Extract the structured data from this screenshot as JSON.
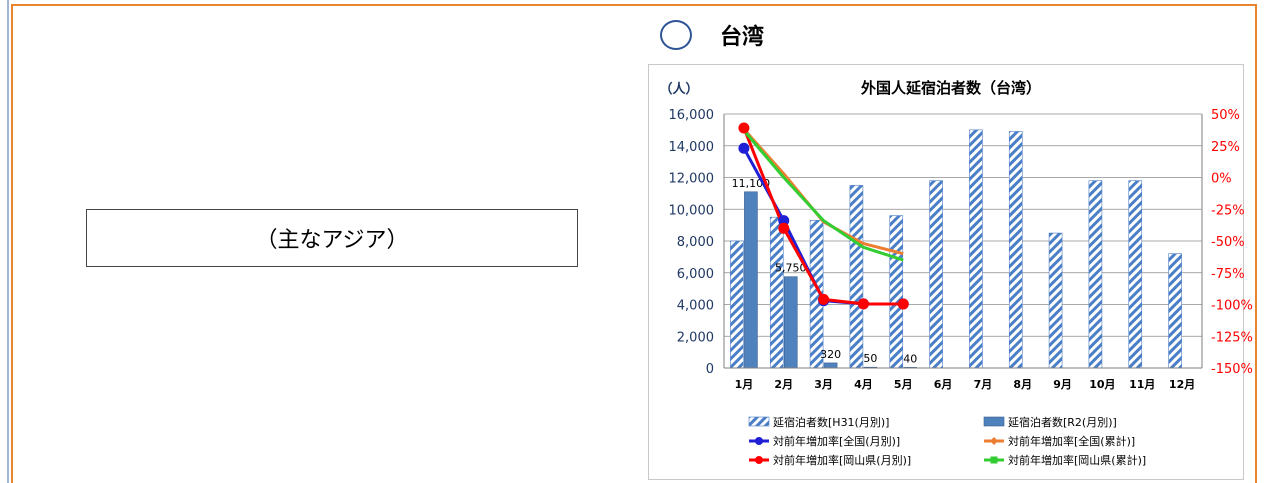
{
  "region_label": "（主なアジア）",
  "country": {
    "name": "台湾"
  },
  "chart_data": {
    "type": "bar",
    "title": "外国人延宿泊者数（台湾）",
    "ylabel": "（人）",
    "categories": [
      "1月",
      "2月",
      "3月",
      "4月",
      "5月",
      "6月",
      "7月",
      "8月",
      "9月",
      "10月",
      "11月",
      "12月"
    ],
    "ylim": [
      0,
      16000
    ],
    "yticks": [
      "0",
      "2,000",
      "4,000",
      "6,000",
      "8,000",
      "10,000",
      "12,000",
      "14,000",
      "16,000"
    ],
    "y2lim": [
      -150,
      50
    ],
    "y2ticks": [
      "-150%",
      "-125%",
      "-100%",
      "-75%",
      "-50%",
      "-25%",
      "0%",
      "25%",
      "50%"
    ],
    "bar_series": [
      {
        "name": "延宿泊者数[H31(月別)]",
        "values": [
          8000,
          9500,
          9300,
          11500,
          9600,
          11800,
          15000,
          14900,
          8500,
          11800,
          11800,
          7200
        ],
        "color": "#4472c4",
        "pattern": "hatched"
      },
      {
        "name": "延宿泊者数[R2(月別)]",
        "values": [
          11100,
          5750,
          320,
          50,
          40,
          null,
          null,
          null,
          null,
          null,
          null,
          null
        ],
        "labels": [
          "11,100",
          "5,750",
          "320",
          "50",
          "40"
        ],
        "color": "#4f81bd",
        "pattern": "solid"
      }
    ],
    "line_series": [
      {
        "name": "対前年増加率[全国(月別)]",
        "values": [
          23,
          -34,
          -97,
          -99.5,
          -99.6
        ],
        "color": "#1f1fd6"
      },
      {
        "name": "対前年増加率[全国(累計)]",
        "values": [
          38,
          3,
          -35,
          -52,
          -60
        ],
        "color": "#ed7d31"
      },
      {
        "name": "対前年増加率[岡山県(月別)]",
        "values": [
          39,
          -40,
          -96,
          -99.5,
          -99.6
        ],
        "color": "#ff0000"
      },
      {
        "name": "対前年増加率[岡山県(累計)]",
        "values": [
          37,
          0,
          -34,
          -55,
          -65
        ],
        "color": "#33cc33"
      }
    ],
    "legend_position": "bottom",
    "grid": true
  }
}
